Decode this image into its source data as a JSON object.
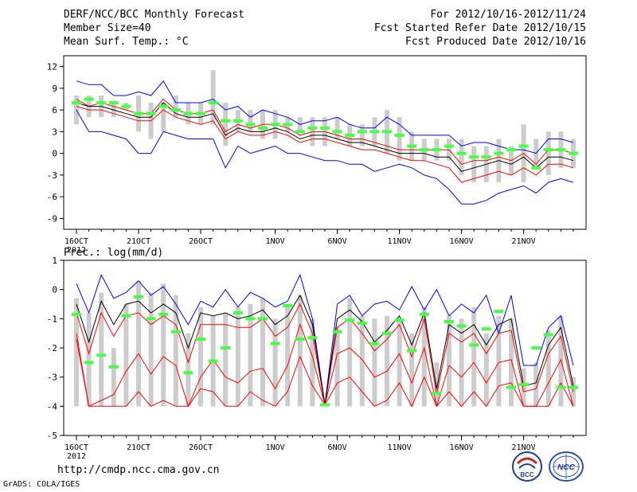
{
  "header": {
    "title": "DERF/NCC/BCC Monthly Forecast",
    "member_size": "Member Size=40",
    "variable": "Mean Surf. Temp.: °C",
    "period": "For 2012/10/16-2012/11/24",
    "start_refer": "Fcst Started Refer Date 2012/10/15",
    "produced": "Fcst Produced Date 2012/10/16"
  },
  "footer": {
    "url": "http://cmdp.ncc.cma.gov.cn",
    "grads": "GrADS: COLA/IGES",
    "logo_bcc": "BCC",
    "logo_ncc": "NCC"
  },
  "chart_data": [
    {
      "type": "line",
      "panel": "top",
      "title": "Mean Surf. Temp.: °C",
      "ylim": [
        -10.5,
        13.5
      ],
      "yticks": [
        12,
        9,
        6,
        3,
        0,
        -3,
        -6,
        -9
      ],
      "x_ticks": [
        {
          "day": 0,
          "label": "16OCT",
          "sub": "2012"
        },
        {
          "day": 5,
          "label": "21OCT",
          "sub": ""
        },
        {
          "day": 10,
          "label": "26OCT",
          "sub": ""
        },
        {
          "day": 16,
          "label": "1NOV",
          "sub": ""
        },
        {
          "day": 21,
          "label": "6NOV",
          "sub": ""
        },
        {
          "day": 26,
          "label": "11NOV",
          "sub": ""
        },
        {
          "day": 31,
          "label": "16NOV",
          "sub": ""
        },
        {
          "day": 36,
          "label": "21NOV",
          "sub": ""
        }
      ],
      "bar_low": [
        4,
        5,
        5,
        5,
        6,
        3,
        2,
        3,
        5,
        4,
        4,
        4,
        1,
        3,
        3,
        2,
        2,
        3,
        3,
        1,
        1,
        2,
        1,
        1,
        1,
        0,
        -1,
        -1,
        -1,
        -1,
        -1,
        -3,
        -4,
        -4,
        -4,
        -3,
        -4,
        -2,
        -3,
        -2,
        -2
      ],
      "bar_high": [
        8,
        8,
        8,
        7,
        7,
        8,
        7,
        7,
        8,
        7,
        7,
        11.5,
        7,
        6,
        6,
        6,
        6,
        5,
        5,
        5,
        5,
        5,
        4,
        4,
        5,
        6,
        5,
        3,
        2,
        2,
        2,
        2,
        1,
        1,
        2,
        1,
        4,
        2,
        3,
        3,
        2
      ],
      "bar_color": "#cccccc",
      "series": [
        {
          "name": "max",
          "color": "#0000ff",
          "values": [
            10,
            9.5,
            9.5,
            8,
            8,
            8.5,
            8,
            10,
            7,
            7,
            7,
            7.5,
            6,
            6.5,
            5,
            6,
            5.5,
            5,
            4,
            4.5,
            4.5,
            5,
            4,
            3.5,
            3.5,
            5,
            4,
            2.5,
            2.5,
            2.5,
            2.5,
            1,
            1.5,
            1.5,
            1,
            0.5,
            0.5,
            0,
            2,
            2,
            1.5
          ]
        },
        {
          "name": "upper",
          "color": "#ff0000",
          "values": [
            7.5,
            6.5,
            7,
            6.5,
            6,
            5.5,
            5.5,
            7.5,
            6,
            5.5,
            5.5,
            6,
            3,
            4,
            3.5,
            4,
            4,
            3.5,
            2.5,
            3,
            3,
            2.5,
            2,
            2,
            1.5,
            1,
            0.5,
            0.5,
            0.5,
            0.5,
            0.5,
            -1.5,
            -1,
            -1,
            -0.5,
            -1,
            0,
            -1.5,
            0.5,
            0.5,
            0
          ]
        },
        {
          "name": "mean",
          "color": "#000000",
          "values": [
            7,
            6.5,
            6.5,
            6,
            5.5,
            5,
            5,
            7,
            5.5,
            5,
            5,
            5.5,
            2.5,
            3.5,
            3,
            3,
            3.5,
            3,
            2,
            2.5,
            2.5,
            2,
            1.5,
            1.5,
            1,
            0.5,
            0,
            0,
            0,
            -0.5,
            -0.5,
            -2.5,
            -2,
            -1.5,
            -1,
            -1.5,
            -0.5,
            -2,
            -0.5,
            -0.5,
            -1
          ]
        },
        {
          "name": "lower",
          "color": "#ff0000",
          "values": [
            6.5,
            6,
            6,
            5.5,
            5,
            4.5,
            4.5,
            6,
            5,
            4.5,
            4,
            4.5,
            2,
            3,
            2.5,
            2.5,
            3,
            2.5,
            1.5,
            2,
            2,
            1.5,
            1,
            0.5,
            0.5,
            0,
            -0.5,
            -1,
            -1,
            -1.5,
            -2,
            -4,
            -3.5,
            -3,
            -2.5,
            -3,
            -2,
            -3,
            -1.5,
            -1.5,
            -2
          ]
        },
        {
          "name": "min",
          "color": "#0000ff",
          "values": [
            6,
            3,
            3,
            2.5,
            2,
            0,
            0,
            3,
            2.5,
            2,
            2,
            2,
            -2,
            1,
            0,
            0.5,
            1,
            0,
            0,
            -0.5,
            -1,
            -1,
            -1.5,
            -1.5,
            -2.5,
            -2,
            -1.5,
            -2,
            -3,
            -3.5,
            -5,
            -7,
            -7,
            -6.5,
            -5.5,
            -5,
            -4.5,
            -5.5,
            -4,
            -3.5,
            -4
          ]
        }
      ],
      "obs_color": "#44ff44",
      "observed": [
        7,
        7.5,
        7,
        7,
        6.5,
        5.5,
        5.5,
        6.5,
        6,
        5.5,
        5.5,
        7,
        4.5,
        4.5,
        4,
        3.5,
        4,
        4,
        3,
        3.5,
        3.5,
        3,
        2.5,
        3,
        3,
        3,
        2.5,
        1,
        0.5,
        0.5,
        1,
        0,
        -0.5,
        -0.5,
        0,
        0.5,
        1,
        -2,
        0.5,
        0.5,
        0
      ]
    },
    {
      "type": "line",
      "panel": "bottom",
      "title": "Prec.: log(mm/d)",
      "ylim": [
        -5,
        1
      ],
      "yticks": [
        1,
        0,
        -1,
        -2,
        -3,
        -4,
        -5
      ],
      "x_ticks": [
        {
          "day": 0,
          "label": "16OCT",
          "sub": "2012"
        },
        {
          "day": 5,
          "label": "21OCT",
          "sub": ""
        },
        {
          "day": 10,
          "label": "26OCT",
          "sub": ""
        },
        {
          "day": 16,
          "label": "1NOV",
          "sub": ""
        },
        {
          "day": 21,
          "label": "6NOV",
          "sub": ""
        },
        {
          "day": 26,
          "label": "11NOV",
          "sub": ""
        },
        {
          "day": 31,
          "label": "16NOV",
          "sub": ""
        },
        {
          "day": 36,
          "label": "21NOV",
          "sub": ""
        }
      ],
      "bar_low": [
        -4,
        -4,
        -4,
        -4,
        -4,
        -4,
        -4,
        -4,
        -4,
        -4,
        -4,
        -4,
        -4,
        -4,
        -4,
        -4,
        -4,
        -4,
        -4,
        -4,
        -4,
        -4,
        -4,
        -4,
        -4,
        -4,
        -4,
        -4,
        -4,
        -4,
        -4,
        -4,
        -4,
        -4,
        -4,
        -4,
        -4,
        -4,
        -4,
        -4,
        -4
      ],
      "bar_high": [
        -0.3,
        -0.8,
        -0.1,
        -2,
        -0.5,
        0.3,
        -0.1,
        0.2,
        -0.2,
        -1.5,
        -0.6,
        -0.9,
        -0.8,
        -0.6,
        -0.5,
        -0.3,
        -1,
        -0.5,
        -0.2,
        -1,
        -3.9,
        -1.3,
        -0.3,
        -0.9,
        -1,
        -0.9,
        -1,
        -1.5,
        -0.6,
        -2.5,
        -0.9,
        -1,
        -0.6,
        -1.5,
        -0.9,
        -1,
        -2.7,
        -2.5,
        -1.4,
        -0.9,
        -3
      ],
      "bar_color": "#cccccc",
      "series": [
        {
          "name": "max",
          "color": "#0000ff",
          "values": [
            0.2,
            -0.8,
            0.5,
            -0.3,
            -0.1,
            0.3,
            -0.2,
            0.1,
            -0.5,
            -1.2,
            -0.4,
            -0.6,
            0,
            -0.6,
            -0.1,
            -0.3,
            -0.6,
            -0.4,
            0.5,
            -1,
            -3.95,
            -0.5,
            -0.2,
            -0.9,
            -0.5,
            -0.4,
            -0.7,
            0.1,
            -0.7,
            0,
            -0.9,
            -0.5,
            -0.8,
            -0.2,
            -1.5,
            -0.2,
            -2.6,
            -2.6,
            -1.3,
            -0.9,
            -2.6
          ]
        },
        {
          "name": "upper",
          "color": "#ff0000",
          "values": [
            -0.8,
            -2.2,
            -0.8,
            -1.6,
            -0.9,
            -0.8,
            -1.2,
            -0.9,
            -1.2,
            -2.5,
            -1.2,
            -1.2,
            -1.2,
            -1.3,
            -1.3,
            -1.0,
            -1.6,
            -1.3,
            -0.5,
            -1.5,
            -3.95,
            -1.3,
            -1.0,
            -1.5,
            -2.1,
            -1.7,
            -1.2,
            -2.3,
            -1.0,
            -3.6,
            -1.5,
            -1.8,
            -1.5,
            -2.2,
            -1.5,
            -1.4,
            -3.5,
            -3.4,
            -2.2,
            -1.6,
            -3.5
          ]
        },
        {
          "name": "mean",
          "color": "#000000",
          "values": [
            -0.5,
            -1.8,
            -0.4,
            -1.2,
            -0.5,
            -0.4,
            -0.8,
            -0.5,
            -0.8,
            -2.0,
            -0.8,
            -0.9,
            -0.8,
            -1.0,
            -0.9,
            -0.7,
            -1.2,
            -0.9,
            -0.2,
            -1.2,
            -3.95,
            -1.0,
            -0.7,
            -1.1,
            -1.8,
            -1.4,
            -0.9,
            -1.9,
            -0.8,
            -3.4,
            -1.2,
            -1.5,
            -1.2,
            -1.9,
            -1.2,
            -1.0,
            -3.3,
            -3.2,
            -1.9,
            -1.3,
            -3.3
          ]
        },
        {
          "name": "lower",
          "color": "#ff0000",
          "values": [
            -1.5,
            -4,
            -3.8,
            -3.6,
            -2.8,
            -2.2,
            -2.9,
            -2.3,
            -2.6,
            -4,
            -3,
            -2.4,
            -3,
            -3.2,
            -2.8,
            -2.7,
            -3.4,
            -2.6,
            -1.2,
            -2.3,
            -3.95,
            -2.2,
            -2.0,
            -2.4,
            -3.0,
            -2.8,
            -2.2,
            -3.2,
            -2.0,
            -4,
            -2.6,
            -3.0,
            -2.5,
            -3.2,
            -2.5,
            -2.4,
            -4,
            -4,
            -3.2,
            -2.4,
            -4
          ]
        },
        {
          "name": "min",
          "color": "#ff0000",
          "values": [
            -1.7,
            -4,
            -4,
            -4,
            -4,
            -3.5,
            -4,
            -3.8,
            -4,
            -4,
            -3.4,
            -3.5,
            -4,
            -4,
            -3.5,
            -3.8,
            -4,
            -3.5,
            -2.3,
            -3.3,
            -3.95,
            -3.2,
            -3.0,
            -3.5,
            -4,
            -3.8,
            -3.2,
            -4,
            -3,
            -4,
            -3.5,
            -4,
            -3.5,
            -4,
            -3.3,
            -3.2,
            -4,
            -4,
            -4,
            -3.2,
            -4
          ]
        }
      ],
      "obs_color": "#44ff44",
      "observed": [
        -0.85,
        -2.5,
        -2.25,
        -2.65,
        -0.9,
        -0.25,
        -1.0,
        -0.85,
        -1.45,
        -2.85,
        -1.7,
        -2.45,
        -2.0,
        -0.8,
        -1.0,
        -1.0,
        -1.85,
        -0.55,
        -1.7,
        -1.65,
        -3.95,
        -1.45,
        -1.05,
        -1.15,
        -1.85,
        -1.5,
        -1.05,
        -2.1,
        -0.85,
        -3.55,
        -1.1,
        -1.25,
        -1.9,
        -1.35,
        -0.75,
        -3.35,
        -3.25,
        -2.0,
        -1.55,
        -3.35,
        -3.35
      ]
    }
  ]
}
